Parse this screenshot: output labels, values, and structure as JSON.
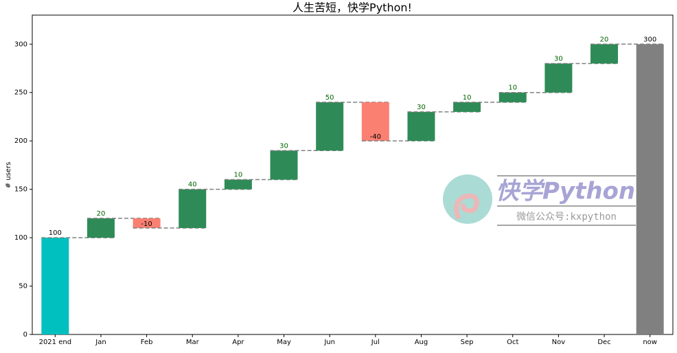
{
  "chart_data": {
    "type": "waterfall",
    "title": "人生苦短，快学Python!",
    "y_label": "# users",
    "categories": [
      "2021 end",
      "Jan",
      "Feb",
      "Mar",
      "Apr",
      "May",
      "Jun",
      "Jul",
      "Aug",
      "Sep",
      "Oct",
      "Nov",
      "Dec",
      "now"
    ],
    "values": [
      100,
      20,
      -10,
      40,
      10,
      30,
      50,
      -40,
      30,
      10,
      10,
      30,
      20,
      300
    ],
    "colors": {
      "start": "#00bfbf",
      "increase": "#2e8b57",
      "decrease": "#fa8072",
      "total": "#808080"
    },
    "ylim": [
      0,
      330
    ],
    "yticks": [
      0,
      50,
      100,
      150,
      200,
      250,
      300
    ],
    "grid": false
  },
  "watermark": {
    "title": "快学Python",
    "subtitle": "微信公众号:kxpython"
  }
}
